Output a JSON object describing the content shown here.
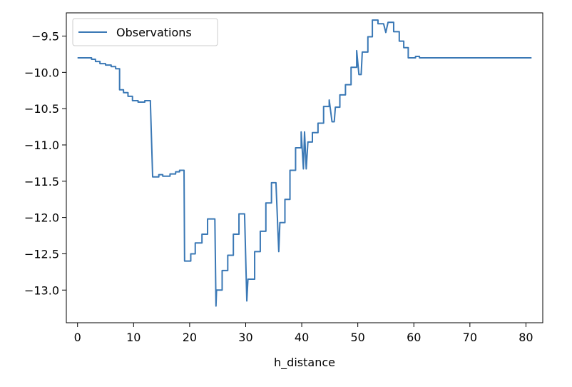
{
  "chart_data": {
    "type": "line",
    "xlabel": "h_distance",
    "ylabel": "",
    "xlim": [
      -2,
      83
    ],
    "ylim": [
      -13.45,
      -9.18
    ],
    "xticks": [
      0,
      10,
      20,
      30,
      40,
      50,
      60,
      70,
      80
    ],
    "yticks": [
      -9.5,
      -10.0,
      -10.5,
      -11.0,
      -11.5,
      -12.0,
      -12.5,
      -13.0
    ],
    "ytick_labels": [
      "−9.5",
      "−10.0",
      "−10.5",
      "−11.0",
      "−11.5",
      "−12.0",
      "−12.5",
      "−13.0"
    ],
    "grid": false,
    "legend_position": "upper-left",
    "series": [
      {
        "name": "Observations",
        "color": "#3a78b5",
        "points": [
          [
            0,
            -9.8
          ],
          [
            2.5,
            -9.8
          ],
          [
            2.5,
            -9.82
          ],
          [
            3.2,
            -9.82
          ],
          [
            3.2,
            -9.85
          ],
          [
            4,
            -9.85
          ],
          [
            4,
            -9.88
          ],
          [
            5,
            -9.88
          ],
          [
            5,
            -9.9
          ],
          [
            6,
            -9.9
          ],
          [
            6,
            -9.92
          ],
          [
            6.8,
            -9.92
          ],
          [
            6.8,
            -9.95
          ],
          [
            7.5,
            -9.95
          ],
          [
            7.5,
            -10.24
          ],
          [
            8.2,
            -10.24
          ],
          [
            8.2,
            -10.28
          ],
          [
            9,
            -10.28
          ],
          [
            9,
            -10.33
          ],
          [
            9.8,
            -10.33
          ],
          [
            9.8,
            -10.39
          ],
          [
            10.8,
            -10.39
          ],
          [
            10.8,
            -10.41
          ],
          [
            12,
            -10.41
          ],
          [
            12,
            -10.39
          ],
          [
            13,
            -10.39
          ],
          [
            13,
            -10.42
          ],
          [
            13.4,
            -11.44
          ],
          [
            14.5,
            -11.44
          ],
          [
            14.5,
            -11.41
          ],
          [
            15.2,
            -11.41
          ],
          [
            15.2,
            -11.43
          ],
          [
            16.5,
            -11.43
          ],
          [
            16.5,
            -11.4
          ],
          [
            17.5,
            -11.4
          ],
          [
            17.5,
            -11.37
          ],
          [
            18.2,
            -11.37
          ],
          [
            18.2,
            -11.35
          ],
          [
            19,
            -11.35
          ],
          [
            19.1,
            -12.6
          ],
          [
            20.2,
            -12.6
          ],
          [
            20.2,
            -12.5
          ],
          [
            21,
            -12.5
          ],
          [
            21,
            -12.35
          ],
          [
            22.2,
            -12.35
          ],
          [
            22.2,
            -12.23
          ],
          [
            23.2,
            -12.23
          ],
          [
            23.2,
            -12.02
          ],
          [
            24.5,
            -12.02
          ],
          [
            24.7,
            -13.22
          ],
          [
            24.8,
            -13.0
          ],
          [
            25.8,
            -13.0
          ],
          [
            25.8,
            -12.73
          ],
          [
            26.8,
            -12.73
          ],
          [
            26.8,
            -12.52
          ],
          [
            27.8,
            -12.52
          ],
          [
            27.8,
            -12.23
          ],
          [
            28.8,
            -12.23
          ],
          [
            28.8,
            -11.95
          ],
          [
            29.8,
            -11.95
          ],
          [
            30.2,
            -13.15
          ],
          [
            30.4,
            -12.85
          ],
          [
            31.6,
            -12.85
          ],
          [
            31.6,
            -12.47
          ],
          [
            32.6,
            -12.47
          ],
          [
            32.6,
            -12.19
          ],
          [
            33.6,
            -12.19
          ],
          [
            33.6,
            -11.8
          ],
          [
            34.6,
            -11.8
          ],
          [
            34.6,
            -11.52
          ],
          [
            35.4,
            -11.52
          ],
          [
            35.9,
            -12.47
          ],
          [
            36.1,
            -12.07
          ],
          [
            37,
            -12.07
          ],
          [
            37,
            -11.75
          ],
          [
            37.9,
            -11.75
          ],
          [
            37.9,
            -11.35
          ],
          [
            38.9,
            -11.35
          ],
          [
            38.9,
            -11.04
          ],
          [
            39.9,
            -11.04
          ],
          [
            39.9,
            -10.82
          ],
          [
            40.3,
            -11.33
          ],
          [
            40.5,
            -10.82
          ],
          [
            40.8,
            -11.33
          ],
          [
            41.1,
            -10.96
          ],
          [
            41.9,
            -10.96
          ],
          [
            41.9,
            -10.83
          ],
          [
            42.9,
            -10.83
          ],
          [
            42.9,
            -10.7
          ],
          [
            43.9,
            -10.7
          ],
          [
            43.9,
            -10.47
          ],
          [
            44.9,
            -10.47
          ],
          [
            44.9,
            -10.38
          ],
          [
            45.4,
            -10.68
          ],
          [
            45.8,
            -10.68
          ],
          [
            46,
            -10.48
          ],
          [
            46.8,
            -10.48
          ],
          [
            46.8,
            -10.31
          ],
          [
            47.8,
            -10.31
          ],
          [
            47.8,
            -10.17
          ],
          [
            48.8,
            -10.17
          ],
          [
            48.8,
            -9.93
          ],
          [
            49.8,
            -9.93
          ],
          [
            49.8,
            -9.7
          ],
          [
            50.2,
            -10.03
          ],
          [
            50.6,
            -10.03
          ],
          [
            50.8,
            -9.72
          ],
          [
            51.8,
            -9.72
          ],
          [
            51.8,
            -9.51
          ],
          [
            52.6,
            -9.51
          ],
          [
            52.6,
            -9.28
          ],
          [
            53.6,
            -9.28
          ],
          [
            53.6,
            -9.33
          ],
          [
            54.6,
            -9.33
          ],
          [
            55,
            -9.45
          ],
          [
            55.4,
            -9.31
          ],
          [
            56.4,
            -9.31
          ],
          [
            56.4,
            -9.44
          ],
          [
            57.4,
            -9.44
          ],
          [
            57.4,
            -9.57
          ],
          [
            58.2,
            -9.57
          ],
          [
            58.2,
            -9.66
          ],
          [
            59,
            -9.66
          ],
          [
            59,
            -9.8
          ],
          [
            60.3,
            -9.8
          ],
          [
            60.3,
            -9.78
          ],
          [
            61,
            -9.78
          ],
          [
            61,
            -9.8
          ],
          [
            81,
            -9.8
          ]
        ]
      }
    ]
  }
}
